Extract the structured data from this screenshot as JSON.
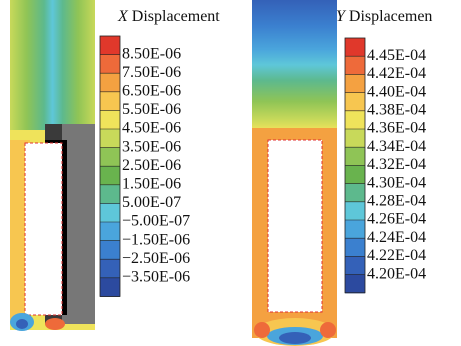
{
  "panels": [
    {
      "symbol": "X",
      "title": "Displacement",
      "labels": [
        "8.50E-06",
        "7.50E-06",
        "6.50E-06",
        "5.50E-06",
        "4.50E-06",
        "3.50E-06",
        "2.50E-06",
        "1.50E-06",
        "5.00E-07",
        "−5.00E-07",
        "−1.50E-06",
        "−2.50E-06",
        "−3.50E-06"
      ],
      "colors": [
        "#e0382b",
        "#ee6a3a",
        "#f4a141",
        "#f7c650",
        "#efe35b",
        "#c8d95a",
        "#8fc456",
        "#69b34e",
        "#5db98d",
        "#5ec7d9",
        "#4aa5dc",
        "#3b80cf",
        "#3461b8",
        "#2c4a9f"
      ]
    },
    {
      "symbol": "Y",
      "title": "Displacemen",
      "labels": [
        "4.45E-04",
        "4.42E-04",
        "4.40E-04",
        "4.38E-04",
        "4.36E-04",
        "4.34E-04",
        "4.32E-04",
        "4.30E-04",
        "4.28E-04",
        "4.26E-04",
        "4.24E-04",
        "4.22E-04",
        "4.20E-04"
      ],
      "colors": [
        "#e0382b",
        "#ee6a3a",
        "#f4a141",
        "#f7c650",
        "#efe35b",
        "#c8d95a",
        "#8fc456",
        "#69b34e",
        "#5db98d",
        "#5ec7d9",
        "#4aa5dc",
        "#3b80cf",
        "#3461b8",
        "#2c4a9f"
      ]
    }
  ]
}
